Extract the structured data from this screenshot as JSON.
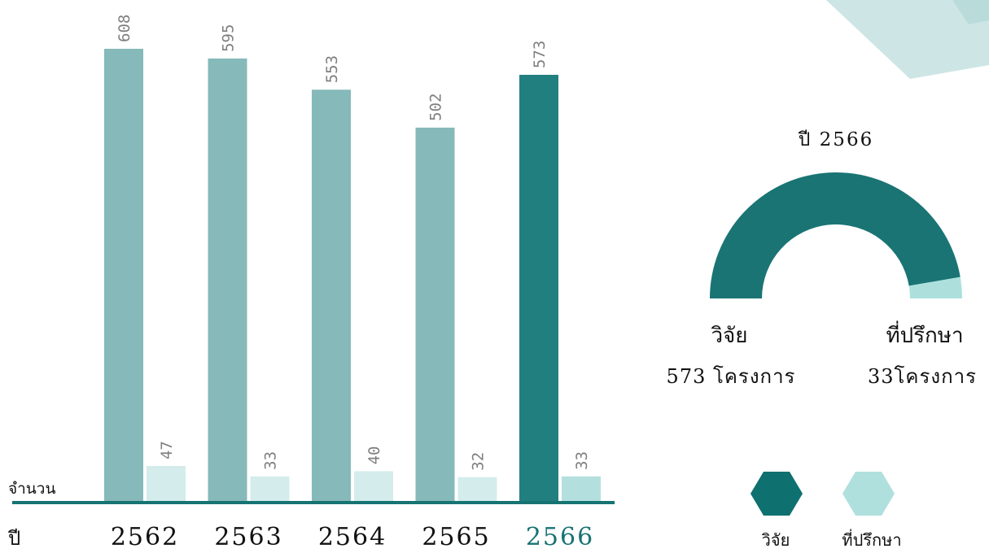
{
  "chart_data": {
    "type": "bar",
    "ylabel": "จำนวน",
    "xlabel": "ปี",
    "categories": [
      "2562",
      "2563",
      "2564",
      "2565",
      "2566"
    ],
    "highlight_category": "2566",
    "series": [
      {
        "name": "วิจัย",
        "values": [
          608,
          595,
          553,
          502,
          573
        ]
      },
      {
        "name": "ที่ปรึกษา",
        "values": [
          47,
          33,
          40,
          32,
          33
        ]
      }
    ],
    "ylim": [
      0,
      640
    ],
    "grid": false,
    "legend_position": "bottom-right"
  },
  "donut": {
    "title": "ปี 2566",
    "segments": [
      {
        "label": "วิจัย",
        "value": 573,
        "value_text": "573 โครงการ"
      },
      {
        "label": "ที่ปรึกษา",
        "value": 33,
        "value_text": "33โครงการ"
      }
    ]
  },
  "legend": {
    "items": [
      {
        "label": "วิจัย"
      },
      {
        "label": "ที่ปรึกษา"
      }
    ]
  },
  "colors": {
    "research": "#86b9b9",
    "research_highlight": "#227f7f",
    "consult": "#d4ecec",
    "consult_highlight": "#b3e0df",
    "baseline": "#167373",
    "value_label": "#7f7f7f",
    "axis_text": "#111111",
    "year_highlight": "#1a7272",
    "donut_main": "#1a7474",
    "donut_minor": "#ade0dd",
    "hex_legend_main": "#0f7070",
    "hex_legend_minor": "#b0e0de",
    "deco": "#cde5e5",
    "deco_inner": "#b9dcdb"
  }
}
